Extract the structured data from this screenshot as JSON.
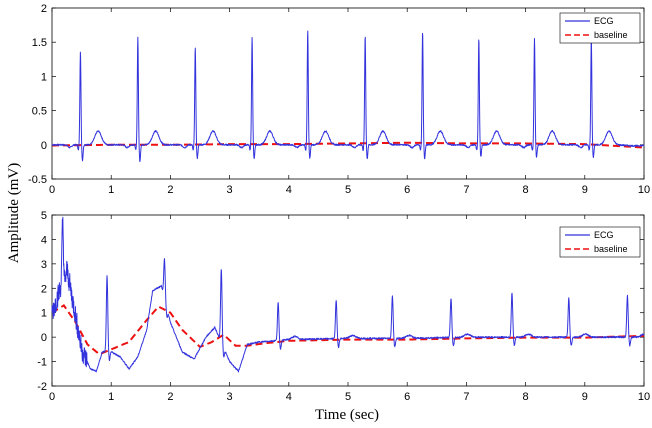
{
  "figure": {
    "ylabel": "Amplitude (mV)",
    "xlabel": "Time (sec)"
  },
  "chart_data": [
    {
      "type": "line",
      "xlabel": "",
      "ylabel": "Amplitude (mV)",
      "xlim": [
        0,
        10
      ],
      "ylim": [
        -0.5,
        2
      ],
      "xticks": [
        "0",
        "1",
        "2",
        "3",
        "4",
        "5",
        "6",
        "7",
        "8",
        "9",
        "10"
      ],
      "yticks": [
        "-0.5",
        "0",
        "0.5",
        "1",
        "1.5",
        "2"
      ],
      "grid": false,
      "legend_position": "top-right",
      "colors": {
        "ecg": "#3333dd",
        "baseline": "#ee1111"
      },
      "series": [
        {
          "name": "ECG",
          "beats": {
            "r_times": [
              0.48,
              1.45,
              2.42,
              3.38,
              4.32,
              5.29,
              6.26,
              7.21,
              8.15,
              9.11
            ],
            "r_peaks": [
              1.32,
              1.52,
              1.38,
              1.52,
              1.62,
              1.55,
              1.61,
              1.5,
              1.5,
              1.5
            ],
            "s_troughs": [
              -0.25,
              -0.26,
              -0.22,
              -0.23,
              -0.22,
              -0.22,
              -0.23,
              -0.19,
              -0.2,
              -0.2
            ],
            "t_wave_amplitude": 0.2,
            "baseline_level": 0
          }
        },
        {
          "name": "baseline",
          "points": [
            [
              0,
              -0.01
            ],
            [
              1,
              0.0
            ],
            [
              2,
              0.0
            ],
            [
              3,
              0.01
            ],
            [
              4,
              0.01
            ],
            [
              5,
              0.02
            ],
            [
              6,
              0.03
            ],
            [
              7,
              0.02
            ],
            [
              8,
              0.02
            ],
            [
              9,
              0.01
            ],
            [
              10,
              -0.04
            ]
          ]
        }
      ]
    },
    {
      "type": "line",
      "xlabel": "Time (sec)",
      "ylabel": "Amplitude (mV)",
      "xlim": [
        0,
        10
      ],
      "ylim": [
        -2,
        5
      ],
      "xticks": [
        "0",
        "1",
        "2",
        "3",
        "4",
        "5",
        "6",
        "7",
        "8",
        "9",
        "10"
      ],
      "yticks": [
        "-2",
        "-1",
        "0",
        "1",
        "2",
        "3",
        "4",
        "5"
      ],
      "grid": false,
      "legend_position": "top-right",
      "colors": {
        "ecg": "#3333dd",
        "baseline": "#ee1111"
      },
      "series": [
        {
          "name": "ECG",
          "beats": {
            "r_times": [
              0.18,
              0.93,
              1.9,
              2.86,
              3.82,
              4.8,
              5.75,
              6.74,
              7.77,
              8.73,
              9.72
            ],
            "r_peaks": [
              4.7,
              2.5,
              3.2,
              2.8,
              1.4,
              1.5,
              1.7,
              1.6,
              1.8,
              1.6,
              1.7
            ]
          },
          "points": [
            [
              0,
              1.0
            ],
            [
              0.1,
              1.7
            ],
            [
              0.25,
              2.8
            ],
            [
              0.35,
              1.5
            ],
            [
              0.5,
              -0.5
            ],
            [
              0.65,
              -1.3
            ],
            [
              0.75,
              -1.4
            ],
            [
              0.85,
              -0.6
            ],
            [
              1.0,
              -0.6
            ],
            [
              1.15,
              -0.8
            ],
            [
              1.3,
              -1.3
            ],
            [
              1.45,
              -0.8
            ],
            [
              1.6,
              0.3
            ],
            [
              1.7,
              1.9
            ],
            [
              1.85,
              2.1
            ],
            [
              2.0,
              0.6
            ],
            [
              2.2,
              -0.6
            ],
            [
              2.4,
              -0.9
            ],
            [
              2.6,
              0.0
            ],
            [
              2.75,
              0.4
            ],
            [
              3.0,
              -1.0
            ],
            [
              3.15,
              -1.4
            ],
            [
              3.3,
              -0.3
            ],
            [
              3.5,
              -0.2
            ],
            [
              4.0,
              -0.1
            ],
            [
              5.0,
              -0.05
            ],
            [
              6.0,
              -0.05
            ],
            [
              7.0,
              0.0
            ],
            [
              8.0,
              0.0
            ],
            [
              9.0,
              0.0
            ],
            [
              10.0,
              0.0
            ]
          ]
        },
        {
          "name": "baseline",
          "points": [
            [
              0,
              1.0
            ],
            [
              0.2,
              1.3
            ],
            [
              0.4,
              0.6
            ],
            [
              0.6,
              -0.3
            ],
            [
              0.8,
              -0.7
            ],
            [
              1.0,
              -0.5
            ],
            [
              1.3,
              -0.2
            ],
            [
              1.6,
              0.7
            ],
            [
              1.8,
              1.25
            ],
            [
              2.0,
              1.0
            ],
            [
              2.2,
              0.3
            ],
            [
              2.5,
              -0.4
            ],
            [
              2.7,
              -0.2
            ],
            [
              2.9,
              0.1
            ],
            [
              3.1,
              -0.35
            ],
            [
              3.3,
              -0.35
            ],
            [
              3.6,
              -0.25
            ],
            [
              4.0,
              -0.15
            ],
            [
              5.0,
              -0.1
            ],
            [
              6.0,
              -0.1
            ],
            [
              7.0,
              -0.05
            ],
            [
              8.0,
              -0.02
            ],
            [
              9.0,
              -0.02
            ],
            [
              9.5,
              0.02
            ],
            [
              10.0,
              0.05
            ]
          ]
        }
      ]
    }
  ]
}
